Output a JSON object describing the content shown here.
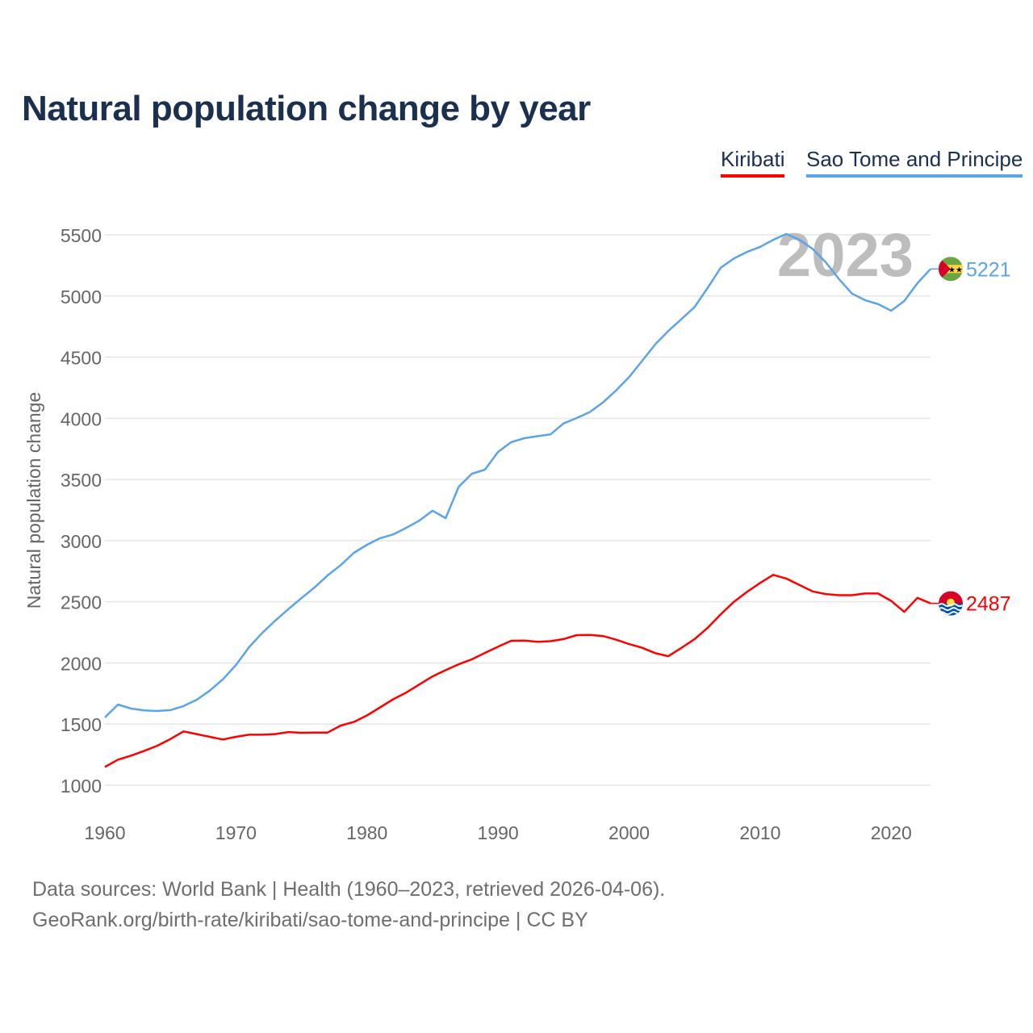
{
  "chart_data": {
    "type": "line",
    "title": "Natural population change by year",
    "xlabel": "",
    "ylabel": "Natural population change",
    "xlim": [
      1960,
      2023
    ],
    "ylim": [
      1000,
      5500
    ],
    "yticks": [
      1000,
      1500,
      2000,
      2500,
      3000,
      3500,
      4000,
      4500,
      5000,
      5500
    ],
    "xticks": [
      1960,
      1970,
      1980,
      1990,
      2000,
      2010,
      2020
    ],
    "grid": true,
    "legend_position": "top-right",
    "year_watermark": "2023",
    "x": [
      1960,
      1961,
      1962,
      1963,
      1964,
      1965,
      1966,
      1967,
      1968,
      1969,
      1970,
      1971,
      1972,
      1973,
      1974,
      1975,
      1976,
      1977,
      1978,
      1979,
      1980,
      1981,
      1982,
      1983,
      1984,
      1985,
      1986,
      1987,
      1988,
      1989,
      1990,
      1991,
      1992,
      1993,
      1994,
      1995,
      1996,
      1997,
      1998,
      1999,
      2000,
      2001,
      2002,
      2003,
      2004,
      2005,
      2006,
      2007,
      2008,
      2009,
      2010,
      2011,
      2012,
      2013,
      2014,
      2015,
      2016,
      2017,
      2018,
      2019,
      2020,
      2021,
      2022,
      2023
    ],
    "series": [
      {
        "name": "Kiribati",
        "color": "#ff0000",
        "end_label": "2487",
        "flag": "kiribati-flag",
        "values": [
          1149,
          1209,
          1242,
          1281,
          1323,
          1378,
          1440,
          1418,
          1396,
          1374,
          1396,
          1413,
          1413,
          1418,
          1435,
          1429,
          1431,
          1431,
          1488,
          1517,
          1571,
          1637,
          1703,
          1758,
          1824,
          1890,
          1941,
          1989,
          2029,
          2082,
          2132,
          2181,
          2183,
          2173,
          2178,
          2195,
          2227,
          2229,
          2220,
          2190,
          2154,
          2124,
          2080,
          2055,
          2124,
          2195,
          2288,
          2398,
          2500,
          2581,
          2654,
          2720,
          2690,
          2637,
          2585,
          2563,
          2554,
          2554,
          2568,
          2568,
          2507,
          2417,
          2532,
          2487
        ]
      },
      {
        "name": "Sao Tome and Principe",
        "color": "#5ba4ea",
        "end_label": "5221",
        "flag": "sao-tome-flag",
        "values": [
          1554,
          1660,
          1627,
          1612,
          1607,
          1614,
          1647,
          1699,
          1773,
          1866,
          1983,
          2128,
          2245,
          2346,
          2440,
          2530,
          2617,
          2716,
          2800,
          2900,
          2966,
          3020,
          3051,
          3105,
          3164,
          3245,
          3184,
          3441,
          3547,
          3580,
          3725,
          3805,
          3837,
          3854,
          3868,
          3958,
          4002,
          4051,
          4129,
          4227,
          4337,
          4471,
          4605,
          4715,
          4812,
          4910,
          5068,
          5232,
          5307,
          5361,
          5402,
          5459,
          5507,
          5459,
          5385,
          5276,
          5141,
          5020,
          4966,
          4934,
          4880,
          4959,
          5105,
          5221
        ]
      }
    ]
  },
  "source_line1": "Data sources: World Bank | Health (1960–2023, retrieved 2026-04-06).",
  "source_line2": "GeoRank.org/birth-rate/kiribati/sao-tome-and-principe | CC BY"
}
